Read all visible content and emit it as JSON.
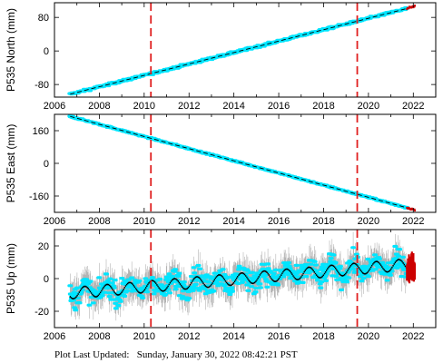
{
  "footer": {
    "label": "Plot Last Updated:",
    "timestamp": "Sunday, January 30, 2022 08:42:21 PST"
  },
  "colors": {
    "data_points": "#00e5ff",
    "error_bars": "#b4b4b4",
    "model_line": "#000000",
    "recent_points": "#cc0000",
    "event_lines": "#e02020"
  },
  "chart_data": [
    {
      "type": "scatter",
      "ylabel": "P535 North (mm)",
      "xlim": [
        2006,
        2023
      ],
      "ylim": [
        -110,
        115
      ],
      "xticks": [
        2006,
        2008,
        2010,
        2012,
        2014,
        2016,
        2018,
        2020,
        2022
      ],
      "yticks": [
        -80,
        0,
        80
      ],
      "x_start": 2006.7,
      "x_end": 2022.07,
      "trend": [
        [
          2006.7,
          -103
        ],
        [
          2022.07,
          106
        ]
      ],
      "scatter_noise": 4,
      "error_bars": false,
      "event_lines_x": [
        2010.3,
        2019.5
      ]
    },
    {
      "type": "scatter",
      "ylabel": "P535 East (mm)",
      "xlim": [
        2006,
        2023
      ],
      "ylim": [
        -240,
        240
      ],
      "xticks": [
        2006,
        2008,
        2010,
        2012,
        2014,
        2016,
        2018,
        2020,
        2022
      ],
      "yticks": [
        -160,
        0,
        160
      ],
      "x_start": 2006.7,
      "x_end": 2022.07,
      "trend": [
        [
          2006.7,
          230
        ],
        [
          2022.07,
          -228
        ]
      ],
      "scatter_noise": 5,
      "error_bars": false,
      "event_lines_x": [
        2010.3,
        2019.5
      ]
    },
    {
      "type": "scatter",
      "ylabel": "P535 Up (mm)",
      "xlim": [
        2006,
        2023
      ],
      "ylim": [
        -30,
        30
      ],
      "xticks": [
        2006,
        2008,
        2010,
        2012,
        2014,
        2016,
        2018,
        2020,
        2022
      ],
      "yticks": [
        -20,
        0,
        20
      ],
      "x_start": 2006.7,
      "x_end": 2022.07,
      "trend": [
        [
          2006.7,
          -9
        ],
        [
          2022.07,
          9
        ]
      ],
      "seasonal_amplitude": 3.5,
      "scatter_noise": 5,
      "error_bars": true,
      "error_bar_half_height": 8,
      "event_lines_x": [
        2010.3,
        2019.5
      ]
    }
  ]
}
